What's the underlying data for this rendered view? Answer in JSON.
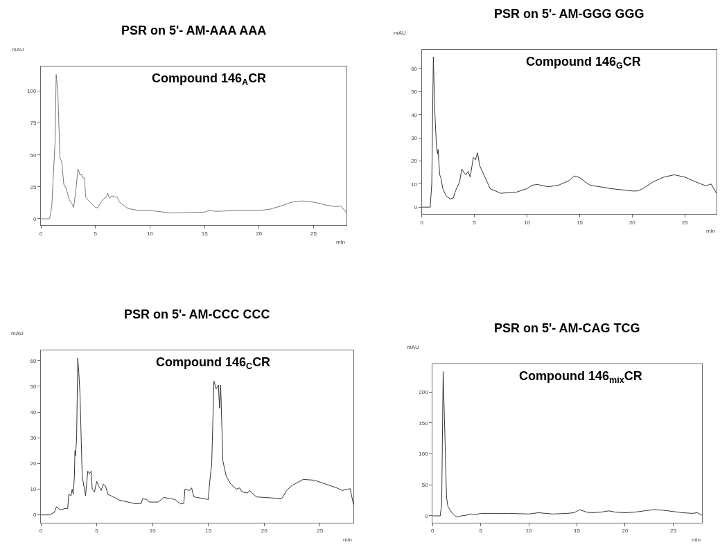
{
  "chart_data": [
    {
      "type": "line",
      "title": "PSR on 5'- AM-AAA AAA",
      "xlabel": "min",
      "ylabel": "mAU",
      "annotations": [
        "Compound 146$_{A}$CR"
      ],
      "xlim": [
        0,
        28
      ],
      "ylim": [
        -5,
        119
      ],
      "xticks": [
        0,
        5,
        10,
        15,
        20,
        25
      ],
      "yticks": [
        0,
        25,
        50,
        75,
        100
      ],
      "series": [
        {
          "color": "#777777",
          "x": [
            0,
            0.8,
            1.0,
            1.1,
            1.3,
            1.4,
            1.55,
            1.7,
            1.75,
            1.9,
            2.1,
            2.3,
            2.6,
            2.9,
            3.0,
            3.2,
            3.4,
            3.6,
            3.75,
            3.85,
            4.0,
            4.1,
            4.5,
            5.0,
            5.2,
            5.5,
            5.8,
            6.0,
            6.1,
            6.3,
            6.5,
            6.8,
            7.0,
            7.2,
            8,
            9,
            10,
            11,
            12,
            13,
            14,
            15,
            15.2,
            15.7,
            16,
            18,
            20,
            21,
            22,
            23,
            24,
            25,
            26,
            27,
            27.5,
            28
          ],
          "values": [
            0,
            0,
            10,
            28,
            60,
            113,
            100,
            60,
            47,
            45,
            27,
            24,
            15,
            11,
            9,
            22,
            39,
            34,
            35,
            32,
            32,
            17,
            13,
            9,
            8.5,
            13,
            16,
            17,
            20,
            16,
            18,
            17,
            17,
            13,
            8,
            6.5,
            6.5,
            5.5,
            4.5,
            4.8,
            5,
            5.2,
            6,
            6.5,
            5.8,
            6.5,
            6.5,
            7.5,
            10,
            13,
            14,
            13,
            11,
            9.5,
            10,
            5
          ]
        }
      ]
    },
    {
      "type": "line",
      "title": "PSR on 5'- AM-GGG GGG",
      "xlabel": "min",
      "ylabel": "mAU",
      "annotations": [
        "Compound 146$_{G}$CR"
      ],
      "xlim": [
        0,
        28
      ],
      "ylim": [
        -3,
        68
      ],
      "xticks": [
        0,
        5,
        10,
        15,
        20,
        25
      ],
      "yticks": [
        0,
        10,
        20,
        30,
        40,
        50,
        60
      ],
      "series": [
        {
          "color": "#333333",
          "x": [
            0,
            0.8,
            0.95,
            1.1,
            1.25,
            1.4,
            1.5,
            1.55,
            1.7,
            1.8,
            2.0,
            2.3,
            2.7,
            3.0,
            3.2,
            3.6,
            3.8,
            4.0,
            4.2,
            4.4,
            4.6,
            4.9,
            5.1,
            5.3,
            5.5,
            6.0,
            6.5,
            7.5,
            9,
            10,
            10.5,
            11,
            12,
            13,
            14,
            14.5,
            15,
            15.5,
            16,
            18,
            20,
            20.5,
            21,
            22,
            23,
            24,
            25,
            26,
            27,
            27.5,
            28
          ],
          "values": [
            0,
            0,
            10,
            65,
            40,
            26,
            23,
            25,
            14,
            13,
            8,
            5,
            3.5,
            4,
            7,
            11,
            16.5,
            15,
            14,
            15.5,
            13,
            21.5,
            20.5,
            23.5,
            18,
            13,
            8,
            6,
            6.5,
            8,
            9.5,
            9.8,
            8.8,
            9.5,
            11.5,
            13.5,
            12.8,
            11,
            9.5,
            8,
            7,
            7,
            8,
            11,
            13,
            14,
            13,
            11,
            9.2,
            10,
            6
          ]
        }
      ]
    },
    {
      "type": "line",
      "title": "PSR on 5'- AM-CCC CCC",
      "xlabel": "min",
      "ylabel": "mAU",
      "annotations": [
        "Compound 146$_{C}$CR"
      ],
      "xlim": [
        0,
        28
      ],
      "ylim": [
        -3,
        64
      ],
      "xticks": [
        0,
        5,
        10,
        15,
        20,
        25
      ],
      "yticks": [
        0,
        10,
        20,
        30,
        40,
        50,
        60
      ],
      "series": [
        {
          "color": "#333333",
          "x": [
            0,
            0.8,
            1.2,
            1.4,
            1.7,
            2.0,
            2.1,
            2.4,
            2.5,
            2.7,
            2.8,
            2.9,
            3.0,
            3.05,
            3.1,
            3.2,
            3.3,
            3.4,
            3.5,
            3.7,
            4.0,
            4.2,
            4.35,
            4.5,
            4.6,
            4.8,
            5.0,
            5.2,
            5.4,
            5.6,
            5.8,
            6.0,
            6.5,
            7.0,
            8.5,
            9.0,
            9.1,
            9.5,
            9.7,
            10.5,
            11,
            12,
            12.5,
            12.8,
            12.9,
            13.3,
            13.5,
            13.7,
            14,
            15,
            15.1,
            15.3,
            15.5,
            15.7,
            15.9,
            16,
            16.1,
            16.3,
            16.6,
            17,
            17.5,
            17.8,
            18,
            18.5,
            18.7,
            19.3,
            20,
            21,
            21.6,
            22,
            22.5,
            23.5,
            24.5,
            25.5,
            26.5,
            27,
            27.5,
            27.7,
            28
          ],
          "values": [
            0,
            0,
            1,
            3.2,
            2,
            2.2,
            2.5,
            2.5,
            8,
            7.5,
            10,
            8,
            15,
            25,
            23,
            30,
            61,
            55,
            47,
            15,
            7.5,
            17,
            16,
            17,
            10,
            9,
            13,
            11,
            9.5,
            12,
            11,
            8,
            7,
            5.8,
            4.3,
            4.5,
            6.3,
            6,
            5,
            5,
            6.8,
            6,
            4.3,
            4.5,
            10,
            9.5,
            10.5,
            7,
            6.8,
            6,
            12,
            20,
            52,
            49,
            50.5,
            41.5,
            50.5,
            21,
            15,
            12,
            10,
            10.5,
            9,
            8.5,
            9.5,
            7,
            6.8,
            6.5,
            6.5,
            9.5,
            11.5,
            13.8,
            13.5,
            12,
            10.5,
            9.5,
            10,
            10.2,
            4
          ]
        }
      ]
    },
    {
      "type": "line",
      "title": "PSR on 5'- AM-CAG TCG",
      "xlabel": "min",
      "ylabel": "mAU",
      "annotations": [
        "Compound 146$_{mix}$CR"
      ],
      "xlim": [
        0,
        28
      ],
      "ylim": [
        -11,
        245
      ],
      "xticks": [
        0,
        5,
        10,
        15,
        20,
        25
      ],
      "yticks": [
        0,
        50,
        100,
        150,
        200
      ],
      "series": [
        {
          "color": "#333333",
          "x": [
            0,
            0.8,
            0.95,
            1.1,
            1.3,
            1.45,
            1.6,
            2.0,
            2.5,
            3,
            3.5,
            4,
            4.5,
            5,
            7,
            8,
            10,
            11,
            12.5,
            14,
            14.7,
            15.3,
            16,
            16.5,
            17.5,
            18.3,
            19,
            20,
            21,
            22,
            23,
            24,
            25,
            26,
            27,
            27.5,
            28
          ],
          "values": [
            0,
            0,
            20,
            233,
            120,
            30,
            15,
            5,
            -2,
            0,
            1,
            3,
            2,
            4,
            4,
            4,
            3,
            5,
            3,
            4,
            5,
            10,
            6,
            5,
            6,
            8,
            6,
            5,
            6,
            8,
            10,
            9,
            7,
            5,
            4,
            5,
            1
          ]
        }
      ]
    }
  ]
}
